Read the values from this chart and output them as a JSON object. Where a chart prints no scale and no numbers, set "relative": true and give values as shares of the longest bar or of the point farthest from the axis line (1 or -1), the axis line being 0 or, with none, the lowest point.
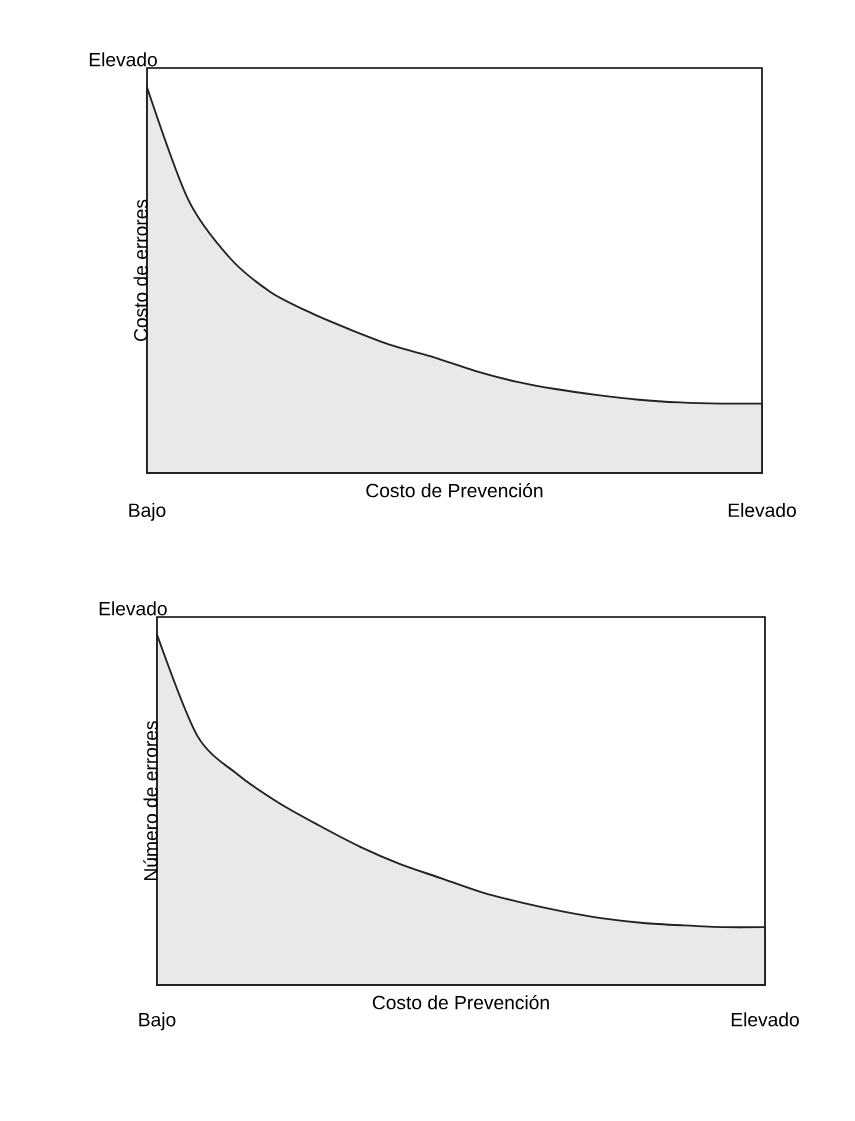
{
  "chart_data": [
    {
      "type": "area",
      "relative": true,
      "color": "#222222",
      "xlabel": "Costo de Prevención",
      "ylabel": "Costo de errores",
      "annotations": [
        "Elevado",
        "Bajo",
        "Elevado"
      ],
      "categories": [
        null,
        null,
        null,
        null,
        null,
        null,
        null,
        null,
        null,
        null,
        null,
        null,
        null,
        null,
        null,
        null
      ],
      "values": [
        1,
        0.71,
        0.56,
        0.47,
        0.415,
        0.37,
        0.33,
        0.3,
        0.265,
        0.237,
        0.217,
        0.202,
        0.19,
        0.183,
        0.18,
        0.18
      ]
    },
    {
      "type": "area",
      "relative": true,
      "color": "#222222",
      "xlabel": "Costo de Prevención",
      "ylabel": "Número de errores",
      "annotations": [
        "Elevado",
        "Bajo",
        "Elevado"
      ],
      "categories": [
        null,
        null,
        null,
        null,
        null,
        null,
        null,
        null,
        null,
        null,
        null,
        null,
        null,
        null,
        null,
        null
      ],
      "values": [
        1,
        0.71,
        0.6,
        0.52,
        0.455,
        0.395,
        0.345,
        0.305,
        0.265,
        0.235,
        0.21,
        0.19,
        0.177,
        0.17,
        0.165,
        0.165
      ]
    }
  ]
}
